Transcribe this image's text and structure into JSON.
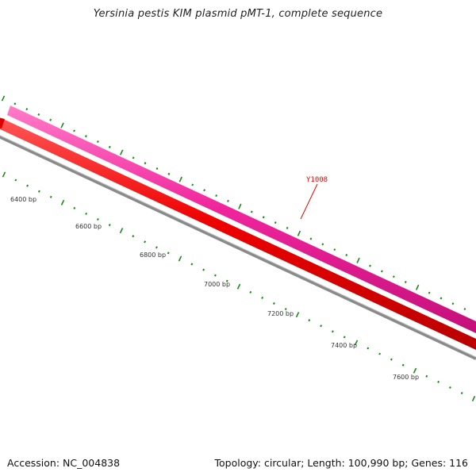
{
  "title": "Yersinia pestis KIM plasmid pMT-1, complete sequence",
  "footer": {
    "accession": "Accession: NC_004838",
    "summary": "Topology: circular; Length: 100,990 bp; Genes: 116"
  },
  "map": {
    "position_labels": [
      "6400 bp",
      "6600 bp",
      "6800 bp",
      "7000 bp",
      "7200 bp",
      "7400 bp",
      "7600 bp"
    ],
    "feature_labels": [
      {
        "text": "Y1008",
        "color": "#ee0000"
      }
    ],
    "colors": {
      "forward_feature": "#f0259c",
      "reverse_feature": "#ee0000",
      "backbone": "#888888",
      "ticks": "#1a8a1a"
    }
  }
}
